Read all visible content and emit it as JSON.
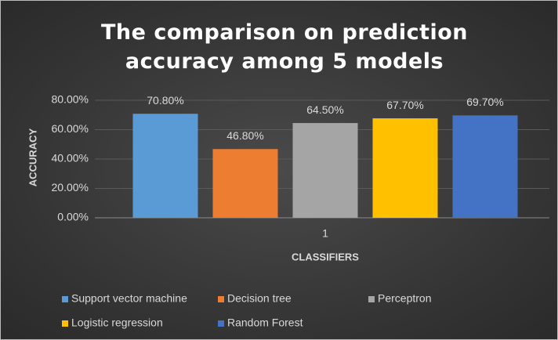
{
  "chart_data": {
    "type": "bar",
    "title": "The comparison on prediction accuracy among 5 models",
    "x_label": "CLASSIFIERS",
    "y_label": "ACCURACY",
    "categories": [
      "1"
    ],
    "series": [
      {
        "name": "Support vector machine",
        "color": "#5b9bd5",
        "values": [
          70.8
        ],
        "value_labels": [
          "70.80%"
        ]
      },
      {
        "name": "Decision tree",
        "color": "#ed7d31",
        "values": [
          46.8
        ],
        "value_labels": [
          "46.80%"
        ]
      },
      {
        "name": "Perceptron",
        "color": "#a5a5a5",
        "values": [
          64.5
        ],
        "value_labels": [
          "64.50%"
        ]
      },
      {
        "name": "Logistic regression",
        "color": "#ffc000",
        "values": [
          67.7
        ],
        "value_labels": [
          "67.70%"
        ]
      },
      {
        "name": "Random Forest",
        "color": "#4472c4",
        "values": [
          69.7
        ],
        "value_labels": [
          "69.70%"
        ]
      }
    ],
    "ylim": [
      0,
      80
    ],
    "yticks": [
      {
        "value": 0,
        "label": "0.00%"
      },
      {
        "value": 20,
        "label": "20.00%"
      },
      {
        "value": 40,
        "label": "40.00%"
      },
      {
        "value": 60,
        "label": "60.00%"
      },
      {
        "value": 80,
        "label": "80.00%"
      }
    ],
    "grid": true,
    "legend": "bottom"
  }
}
